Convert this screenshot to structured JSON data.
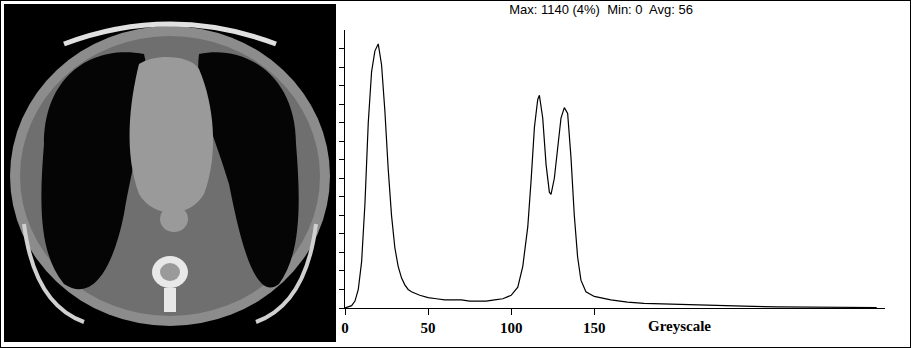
{
  "chart_data": {
    "type": "line",
    "title": "Max: 1140 (4%)  Min: 0  Avg: 56",
    "annotations": [
      "Greyscale"
    ],
    "color": "#000000",
    "grid": false,
    "tick_labels": "x",
    "x": [
      0,
      2,
      4,
      6,
      8,
      10,
      12,
      14,
      16,
      18,
      20,
      22,
      24,
      26,
      28,
      30,
      32,
      34,
      36,
      38,
      40,
      45,
      50,
      55,
      60,
      65,
      70,
      75,
      80,
      85,
      90,
      95,
      100,
      104,
      107,
      110,
      112,
      114,
      116,
      117,
      119,
      121,
      123,
      124,
      126,
      128,
      130,
      132,
      134,
      136,
      138,
      140,
      142,
      145,
      150,
      160,
      170,
      180,
      200,
      220,
      240,
      260,
      280,
      300,
      320
    ],
    "values": [
      0,
      5,
      10,
      30,
      80,
      200,
      450,
      800,
      1020,
      1110,
      1140,
      1050,
      850,
      600,
      400,
      260,
      180,
      130,
      100,
      80,
      70,
      55,
      45,
      40,
      35,
      35,
      35,
      30,
      30,
      30,
      35,
      40,
      55,
      90,
      180,
      350,
      550,
      780,
      900,
      918,
      820,
      620,
      500,
      490,
      560,
      700,
      820,
      865,
      840,
      650,
      400,
      220,
      120,
      70,
      50,
      35,
      25,
      20,
      15,
      10,
      8,
      5,
      5,
      3,
      2
    ],
    "xlim": [
      0,
      325
    ],
    "xticks": [
      0,
      50,
      100,
      150
    ],
    "ylim": [
      0,
      1200
    ],
    "yticks": [
      0,
      80,
      160,
      240,
      320,
      400,
      480,
      560,
      640,
      720,
      800,
      880,
      960,
      1040,
      1120
    ]
  }
}
